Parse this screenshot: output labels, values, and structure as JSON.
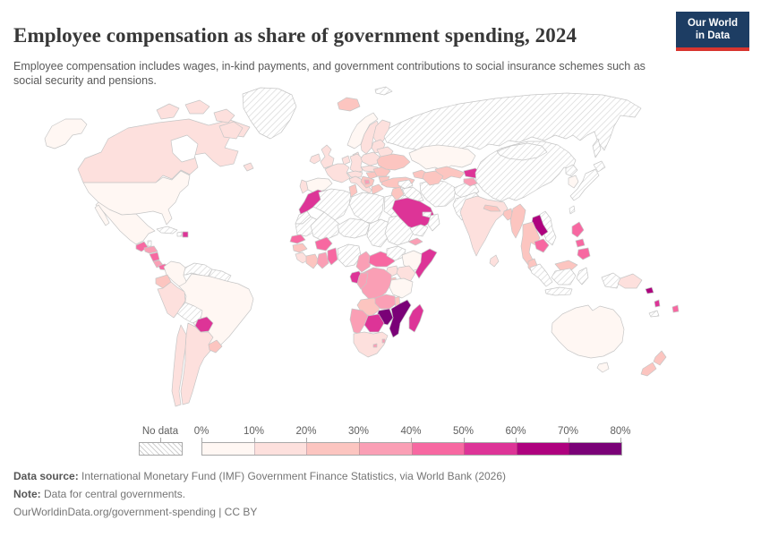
{
  "header": {
    "title": "Employee compensation as share of government spending, 2024",
    "subtitle": "Employee compensation includes wages, in-kind payments, and government contributions to social insurance schemes such as social security and pensions.",
    "logo": {
      "line1": "Our World",
      "line2": "in Data",
      "bg_color": "#1d3d63",
      "accent_color": "#d8352f"
    }
  },
  "chart_data": {
    "type": "heatmap",
    "variant": "world-choropleth-map",
    "title": "Employee compensation as share of government spending",
    "year": "2024",
    "unit": "share of government spending (%)",
    "grid": false,
    "legend": {
      "position": "bottom",
      "no_data_label": "No data",
      "no_data_pattern": "gray diagonal hatch",
      "tick_labels": [
        "0%",
        "10%",
        "20%",
        "30%",
        "40%",
        "50%",
        "60%",
        "70%",
        "80%"
      ],
      "bin_ranges": [
        "0-10%",
        "10-20%",
        "20-30%",
        "30-40%",
        "40-50%",
        "50-60%",
        "60-70%",
        "70-80%"
      ],
      "bin_colors": [
        "#fff7f3",
        "#fde0dd",
        "#fcc5c0",
        "#fa9fb5",
        "#f768a1",
        "#dd3497",
        "#ae017e",
        "#7a0177"
      ],
      "border_color": "#c6c6c6"
    },
    "regions": [
      {
        "id": "united-states",
        "name": "United States",
        "value": "0-10%",
        "bin": 0
      },
      {
        "id": "canada",
        "name": "Canada",
        "value": "10-20%",
        "bin": 1
      },
      {
        "id": "greenland",
        "name": "Greenland",
        "value": "No data",
        "bin": -1
      },
      {
        "id": "mexico",
        "name": "Mexico",
        "value": "0-10%",
        "bin": 0
      },
      {
        "id": "guatemala",
        "name": "Guatemala",
        "value": "40-50%",
        "bin": 4
      },
      {
        "id": "belize",
        "name": "Belize",
        "value": "No data",
        "bin": -1
      },
      {
        "id": "honduras",
        "name": "Honduras",
        "value": "30-40%",
        "bin": 3
      },
      {
        "id": "nicaragua",
        "name": "Nicaragua",
        "value": "40-50%",
        "bin": 4
      },
      {
        "id": "costa-rica",
        "name": "Costa Rica",
        "value": "30-40%",
        "bin": 3
      },
      {
        "id": "panama",
        "name": "Panama",
        "value": "40-50%",
        "bin": 4
      },
      {
        "id": "cuba",
        "name": "Cuba",
        "value": "No data",
        "bin": -1
      },
      {
        "id": "haiti",
        "name": "Haiti",
        "value": "No data",
        "bin": -1
      },
      {
        "id": "dominican-republic",
        "name": "Dominican Republic",
        "value": "50-60%",
        "bin": 5
      },
      {
        "id": "colombia",
        "name": "Colombia",
        "value": "0-10%",
        "bin": 0
      },
      {
        "id": "venezuela",
        "name": "Venezuela",
        "value": "No data",
        "bin": -1
      },
      {
        "id": "guianas",
        "name": "Guyana & Suriname",
        "value": "No data",
        "bin": -1
      },
      {
        "id": "ecuador",
        "name": "Ecuador",
        "value": "20-30%",
        "bin": 2
      },
      {
        "id": "peru",
        "name": "Peru",
        "value": "10-20%",
        "bin": 1
      },
      {
        "id": "brazil",
        "name": "Brazil",
        "value": "0-10%",
        "bin": 0
      },
      {
        "id": "bolivia",
        "name": "Bolivia",
        "value": "No data",
        "bin": -1
      },
      {
        "id": "paraguay",
        "name": "Paraguay",
        "value": "50-60%",
        "bin": 5
      },
      {
        "id": "uruguay",
        "name": "Uruguay",
        "value": "20-30%",
        "bin": 2
      },
      {
        "id": "argentina",
        "name": "Argentina",
        "value": "10-20%",
        "bin": 1
      },
      {
        "id": "chile",
        "name": "Chile",
        "value": "10-20%",
        "bin": 1
      },
      {
        "id": "iceland",
        "name": "Iceland",
        "value": "20-30%",
        "bin": 2
      },
      {
        "id": "norway",
        "name": "Norway",
        "value": "0-10%",
        "bin": 0
      },
      {
        "id": "sweden",
        "name": "Sweden",
        "value": "10-20%",
        "bin": 1
      },
      {
        "id": "finland",
        "name": "Finland",
        "value": "10-20%",
        "bin": 1
      },
      {
        "id": "denmark",
        "name": "Denmark",
        "value": "10-20%",
        "bin": 1
      },
      {
        "id": "united-kingdom",
        "name": "United Kingdom",
        "value": "10-20%",
        "bin": 1
      },
      {
        "id": "ireland",
        "name": "Ireland",
        "value": "10-20%",
        "bin": 1
      },
      {
        "id": "netherlands-belgium",
        "name": "Netherlands & Belgium",
        "value": "10-20%",
        "bin": 1
      },
      {
        "id": "france",
        "name": "France",
        "value": "10-20%",
        "bin": 1
      },
      {
        "id": "spain",
        "name": "Spain",
        "value": "0-10%",
        "bin": 0
      },
      {
        "id": "portugal",
        "name": "Portugal",
        "value": "10-20%",
        "bin": 1
      },
      {
        "id": "germany",
        "name": "Germany",
        "value": "10-20%",
        "bin": 1
      },
      {
        "id": "poland",
        "name": "Poland",
        "value": "10-20%",
        "bin": 1
      },
      {
        "id": "czechia-slovakia",
        "name": "Czechia & Slovakia",
        "value": "10-20%",
        "bin": 1
      },
      {
        "id": "austria-switzerland",
        "name": "Austria & Switzerland",
        "value": "10-20%",
        "bin": 1
      },
      {
        "id": "hungary",
        "name": "Hungary",
        "value": "20-30%",
        "bin": 2
      },
      {
        "id": "italy",
        "name": "Italy",
        "value": "10-20%",
        "bin": 1
      },
      {
        "id": "croatia-serbia",
        "name": "Western Balkans",
        "value": "20-30%",
        "bin": 2
      },
      {
        "id": "bosnia",
        "name": "Bosnia and Herzegovina",
        "value": "30-40%",
        "bin": 3
      },
      {
        "id": "greece",
        "name": "Greece",
        "value": "20-30%",
        "bin": 2
      },
      {
        "id": "romania",
        "name": "Romania",
        "value": "20-30%",
        "bin": 2
      },
      {
        "id": "bulgaria",
        "name": "Bulgaria",
        "value": "20-30%",
        "bin": 2
      },
      {
        "id": "baltics",
        "name": "Baltic states",
        "value": "10-20%",
        "bin": 1
      },
      {
        "id": "belarus",
        "name": "Belarus",
        "value": "10-20%",
        "bin": 1
      },
      {
        "id": "ukraine",
        "name": "Ukraine",
        "value": "20-30%",
        "bin": 2
      },
      {
        "id": "russia",
        "name": "Russia",
        "value": "No data",
        "bin": -1
      },
      {
        "id": "svalbard",
        "name": "Svalbard",
        "value": "No data",
        "bin": -1
      },
      {
        "id": "turkey",
        "name": "Turkey",
        "value": "20-30%",
        "bin": 2
      },
      {
        "id": "caucasus",
        "name": "Caucasus states",
        "value": "20-30%",
        "bin": 2
      },
      {
        "id": "morocco",
        "name": "Morocco",
        "value": "50-60%",
        "bin": 5
      },
      {
        "id": "western-sahara",
        "name": "Western Sahara",
        "value": "No data",
        "bin": -1
      },
      {
        "id": "algeria",
        "name": "Algeria",
        "value": "No data",
        "bin": -1
      },
      {
        "id": "tunisia",
        "name": "Tunisia",
        "value": "20-30%",
        "bin": 2
      },
      {
        "id": "libya",
        "name": "Libya",
        "value": "No data",
        "bin": -1
      },
      {
        "id": "egypt",
        "name": "Egypt",
        "value": "No data",
        "bin": -1
      },
      {
        "id": "mauritania",
        "name": "Mauritania",
        "value": "No data",
        "bin": -1
      },
      {
        "id": "mali",
        "name": "Mali",
        "value": "No data",
        "bin": -1
      },
      {
        "id": "niger",
        "name": "Niger",
        "value": "No data",
        "bin": -1
      },
      {
        "id": "chad",
        "name": "Chad",
        "value": "No data",
        "bin": -1
      },
      {
        "id": "sudan",
        "name": "Sudan",
        "value": "No data",
        "bin": -1
      },
      {
        "id": "eritrea",
        "name": "Eritrea",
        "value": "30-40%",
        "bin": 3
      },
      {
        "id": "senegal",
        "name": "Senegal",
        "value": "40-50%",
        "bin": 4
      },
      {
        "id": "guinea",
        "name": "Guinea",
        "value": "20-30%",
        "bin": 2
      },
      {
        "id": "sierra-leone-liberia",
        "name": "Sierra Leone & Liberia",
        "value": "10-20%",
        "bin": 1
      },
      {
        "id": "cote-divoire",
        "name": "Côte d'Ivoire",
        "value": "20-30%",
        "bin": 2
      },
      {
        "id": "burkina-faso",
        "name": "Burkina Faso",
        "value": "40-50%",
        "bin": 4
      },
      {
        "id": "ghana",
        "name": "Ghana",
        "value": "30-40%",
        "bin": 3
      },
      {
        "id": "togo-benin",
        "name": "Togo & Benin",
        "value": "40-50%",
        "bin": 4
      },
      {
        "id": "nigeria",
        "name": "Nigeria",
        "value": "No data",
        "bin": -1
      },
      {
        "id": "cameroon",
        "name": "Cameroon",
        "value": "30-40%",
        "bin": 3
      },
      {
        "id": "central-african-republic",
        "name": "Central African Republic",
        "value": "40-50%",
        "bin": 4
      },
      {
        "id": "south-sudan",
        "name": "South Sudan",
        "value": "No data",
        "bin": -1
      },
      {
        "id": "ethiopia",
        "name": "Ethiopia",
        "value": "0-10%",
        "bin": 0
      },
      {
        "id": "somalia",
        "name": "Somalia",
        "value": "50-60%",
        "bin": 5
      },
      {
        "id": "kenya",
        "name": "Kenya",
        "value": "10-20%",
        "bin": 1
      },
      {
        "id": "uganda",
        "name": "Uganda",
        "value": "10-20%",
        "bin": 1
      },
      {
        "id": "rwanda-burundi",
        "name": "Rwanda & Burundi",
        "value": "20-30%",
        "bin": 2
      },
      {
        "id": "dr-congo",
        "name": "Democratic Republic of Congo",
        "value": "30-40%",
        "bin": 3
      },
      {
        "id": "gabon",
        "name": "Gabon",
        "value": "50-60%",
        "bin": 5
      },
      {
        "id": "congo",
        "name": "Congo",
        "value": "30-40%",
        "bin": 3
      },
      {
        "id": "tanzania",
        "name": "Tanzania",
        "value": "0-10%",
        "bin": 0
      },
      {
        "id": "angola",
        "name": "Angola",
        "value": "20-30%",
        "bin": 2
      },
      {
        "id": "zambia",
        "name": "Zambia",
        "value": "30-40%",
        "bin": 3
      },
      {
        "id": "malawi",
        "name": "Malawi",
        "value": "20-30%",
        "bin": 2
      },
      {
        "id": "mozambique",
        "name": "Mozambique",
        "value": "70-80%",
        "bin": 7
      },
      {
        "id": "zimbabwe",
        "name": "Zimbabwe",
        "value": "70-80%",
        "bin": 7
      },
      {
        "id": "madagascar",
        "name": "Madagascar",
        "value": "50-60%",
        "bin": 5
      },
      {
        "id": "botswana",
        "name": "Botswana",
        "value": "50-60%",
        "bin": 5
      },
      {
        "id": "namibia",
        "name": "Namibia",
        "value": "30-40%",
        "bin": 3
      },
      {
        "id": "south-africa",
        "name": "South Africa",
        "value": "10-20%",
        "bin": 1
      },
      {
        "id": "lesotho",
        "name": "Lesotho",
        "value": "30-40%",
        "bin": 3
      },
      {
        "id": "eswatini",
        "name": "Eswatini",
        "value": "30-40%",
        "bin": 3
      },
      {
        "id": "syria",
        "name": "Syria",
        "value": "No data",
        "bin": -1
      },
      {
        "id": "iraq",
        "name": "Iraq",
        "value": "No data",
        "bin": -1
      },
      {
        "id": "israel-jordan",
        "name": "Israel & Jordan",
        "value": "20-30%",
        "bin": 2
      },
      {
        "id": "saudi-arabia",
        "name": "Saudi Arabia",
        "value": "50-60%",
        "bin": 5
      },
      {
        "id": "yemen",
        "name": "Yemen",
        "value": "No data",
        "bin": -1
      },
      {
        "id": "oman",
        "name": "Oman",
        "value": "No data",
        "bin": -1
      },
      {
        "id": "uae-qatar",
        "name": "United Arab Emirates & Qatar",
        "value": "No data",
        "bin": -1
      },
      {
        "id": "iran",
        "name": "Iran",
        "value": "No data",
        "bin": -1
      },
      {
        "id": "afghanistan",
        "name": "Afghanistan",
        "value": "No data",
        "bin": -1
      },
      {
        "id": "pakistan",
        "name": "Pakistan",
        "value": "No data",
        "bin": -1
      },
      {
        "id": "kazakhstan",
        "name": "Kazakhstan",
        "value": "0-10%",
        "bin": 0
      },
      {
        "id": "uzbekistan",
        "name": "Uzbekistan",
        "value": "20-30%",
        "bin": 2
      },
      {
        "id": "turkmenistan",
        "name": "Turkmenistan",
        "value": "20-30%",
        "bin": 2
      },
      {
        "id": "kyrgyzstan",
        "name": "Kyrgyzstan",
        "value": "50-60%",
        "bin": 5
      },
      {
        "id": "tajikistan",
        "name": "Tajikistan",
        "value": "30-40%",
        "bin": 3
      },
      {
        "id": "india",
        "name": "India",
        "value": "10-20%",
        "bin": 1
      },
      {
        "id": "nepal",
        "name": "Nepal",
        "value": "20-30%",
        "bin": 2
      },
      {
        "id": "bangladesh",
        "name": "Bangladesh",
        "value": "20-30%",
        "bin": 2
      },
      {
        "id": "sri-lanka",
        "name": "Sri Lanka",
        "value": "10-20%",
        "bin": 1
      },
      {
        "id": "myanmar",
        "name": "Myanmar",
        "value": "20-30%",
        "bin": 2
      },
      {
        "id": "china",
        "name": "China",
        "value": "No data",
        "bin": -1
      },
      {
        "id": "mongolia",
        "name": "Mongolia",
        "value": "No data",
        "bin": -1
      },
      {
        "id": "north-korea",
        "name": "North Korea",
        "value": "No data",
        "bin": -1
      },
      {
        "id": "south-korea",
        "name": "South Korea",
        "value": "0-10%",
        "bin": 0
      },
      {
        "id": "japan",
        "name": "Japan",
        "value": "No data",
        "bin": -1
      },
      {
        "id": "taiwan",
        "name": "Taiwan",
        "value": "No data",
        "bin": -1
      },
      {
        "id": "vietnam",
        "name": "Vietnam",
        "value": "No data",
        "bin": -1
      },
      {
        "id": "laos",
        "name": "Laos",
        "value": "60-70%",
        "bin": 6
      },
      {
        "id": "thailand",
        "name": "Thailand",
        "value": "20-30%",
        "bin": 2
      },
      {
        "id": "cambodia",
        "name": "Cambodia",
        "value": "40-50%",
        "bin": 4
      },
      {
        "id": "malaysia",
        "name": "Malaysia",
        "value": "20-30%",
        "bin": 2
      },
      {
        "id": "philippines",
        "name": "Philippines",
        "value": "40-50%",
        "bin": 4
      },
      {
        "id": "indonesia",
        "name": "Indonesia",
        "value": "No data",
        "bin": -1
      },
      {
        "id": "papua-new-guinea",
        "name": "Papua New Guinea",
        "value": "10-20%",
        "bin": 1
      },
      {
        "id": "solomon-islands",
        "name": "Solomon Islands",
        "value": "60-70%",
        "bin": 6
      },
      {
        "id": "vanuatu",
        "name": "Vanuatu",
        "value": "50-60%",
        "bin": 5
      },
      {
        "id": "fiji",
        "name": "Fiji",
        "value": "40-50%",
        "bin": 4
      },
      {
        "id": "new-caledonia",
        "name": "New Caledonia",
        "value": "No data",
        "bin": -1
      },
      {
        "id": "australia",
        "name": "Australia",
        "value": "0-10%",
        "bin": 0
      },
      {
        "id": "new-zealand",
        "name": "New Zealand",
        "value": "20-30%",
        "bin": 2
      }
    ]
  },
  "footer": {
    "source_label": "Data source:",
    "source_text": " International Monetary Fund (IMF) Government Finance Statistics, via World Bank (2026)",
    "note_label": "Note:",
    "note_text": " Data for central governments.",
    "citation": "OurWorldinData.org/government-spending | CC BY"
  }
}
